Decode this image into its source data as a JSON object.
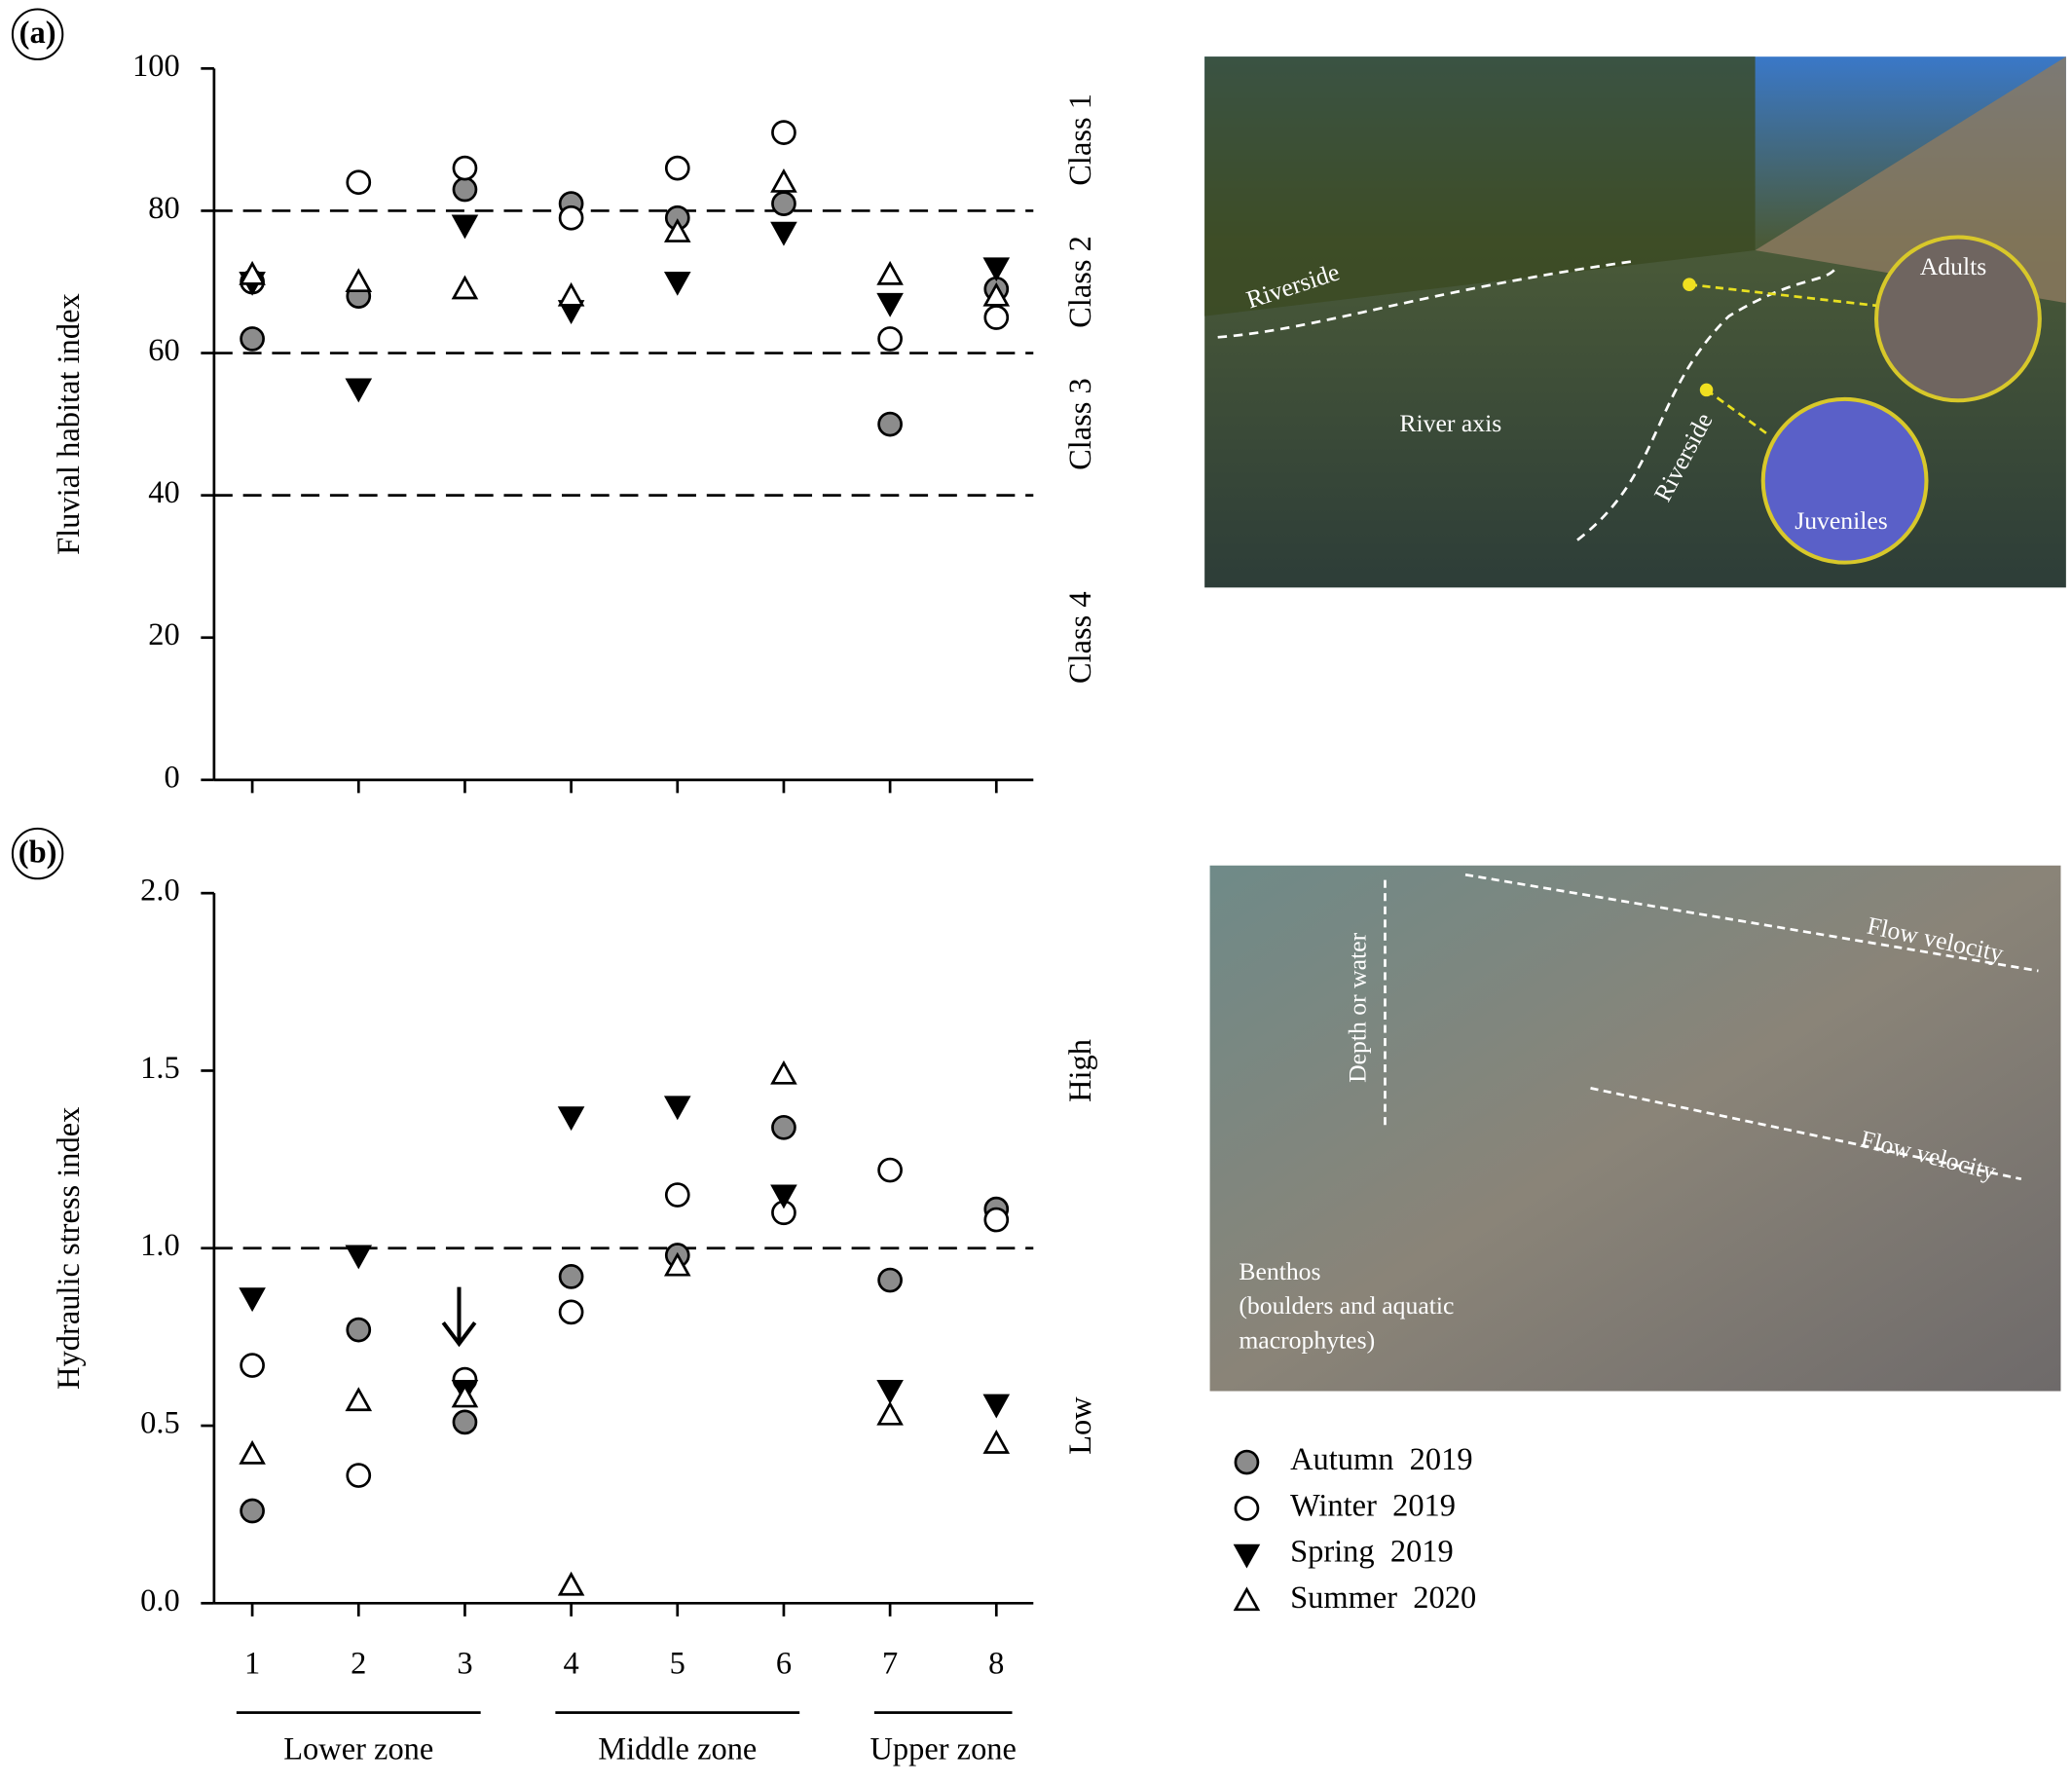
{
  "chart_data": [
    {
      "type": "scatter",
      "panel": "(a)",
      "y_label": "Fluvial habitat index",
      "categories": [
        null,
        null,
        null,
        null,
        null,
        null,
        null,
        null
      ],
      "ylim": [
        0,
        100
      ],
      "yticks": [
        0,
        20,
        40,
        60,
        80,
        100
      ],
      "hlines": [
        80,
        60,
        40
      ],
      "bands": [
        {
          "label": "Class 1",
          "range": [
            80,
            100
          ]
        },
        {
          "label": "Class 2",
          "range": [
            60,
            80
          ]
        },
        {
          "label": "Class 3",
          "range": [
            40,
            60
          ]
        },
        {
          "label": "Class 4",
          "range": [
            0,
            40
          ]
        }
      ],
      "series": [
        {
          "marker": "circle",
          "color": "#8c8c8c",
          "values": [
            62,
            68,
            83,
            81,
            79,
            81,
            50,
            69
          ]
        },
        {
          "marker": "circle",
          "color": "#ffffff",
          "values": [
            70,
            84,
            86,
            79,
            86,
            91,
            62,
            65
          ]
        },
        {
          "marker": "triangle-down",
          "color": "#000000",
          "values": [
            70,
            55,
            78,
            66,
            70,
            77,
            67,
            72
          ]
        },
        {
          "marker": "triangle-up",
          "color": "#ffffff",
          "values": [
            71,
            70,
            69,
            68,
            77,
            84,
            71,
            68
          ]
        }
      ]
    },
    {
      "type": "scatter",
      "panel": "(b)",
      "y_label": "Hydraulic stress index",
      "categories": [
        "1",
        "2",
        "3",
        "4",
        "5",
        "6",
        "7",
        "8"
      ],
      "ylim": [
        0,
        2
      ],
      "yticks": [
        {
          "value": 0,
          "label": "0.0"
        },
        {
          "value": 0.5,
          "label": "0.5"
        },
        {
          "value": 1,
          "label": "1.0"
        },
        {
          "value": 1.5,
          "label": "1.5"
        },
        {
          "value": 2,
          "label": "2.0"
        }
      ],
      "hlines": [
        1
      ],
      "bands": [
        {
          "label": "High",
          "range": [
            1,
            2
          ]
        },
        {
          "label": "Low",
          "range": [
            0,
            1
          ]
        }
      ],
      "zones": [
        {
          "label": "Lower zone",
          "span": [
            "1",
            "3"
          ]
        },
        {
          "label": "Middle zone",
          "span": [
            "4",
            "6"
          ]
        },
        {
          "label": "Upper zone",
          "span": [
            "7",
            "8"
          ]
        }
      ],
      "series": [
        {
          "name": "Autumn  2019",
          "marker": "circle",
          "color": "#8c8c8c",
          "values": [
            0.26,
            0.77,
            0.51,
            0.92,
            0.98,
            1.34,
            0.91,
            1.11
          ]
        },
        {
          "name": "Winter  2019",
          "marker": "circle",
          "color": "#ffffff",
          "values": [
            0.67,
            0.36,
            0.63,
            0.82,
            1.15,
            1.1,
            1.22,
            1.08
          ]
        },
        {
          "name": "Spring  2019",
          "marker": "triangle-down",
          "color": "#000000",
          "values": [
            0.86,
            0.98,
            0.6,
            1.37,
            1.4,
            1.15,
            0.6,
            0.56
          ]
        },
        {
          "name": "Summer  2020",
          "marker": "triangle-up",
          "color": "#ffffff",
          "values": [
            0.42,
            0.57,
            0.58,
            0.05,
            0.95,
            1.49,
            0.53,
            0.45
          ]
        }
      ]
    }
  ],
  "photos": [
    {
      "labels": [
        "Riverside",
        "River axis",
        "Riverside",
        "Adults",
        "Juveniles"
      ]
    },
    {
      "labels": [
        "Depth or water",
        "Flow velocity",
        "Flow velocity",
        "Benthos",
        "(boulders and aquatic",
        "macrophytes)"
      ]
    }
  ]
}
